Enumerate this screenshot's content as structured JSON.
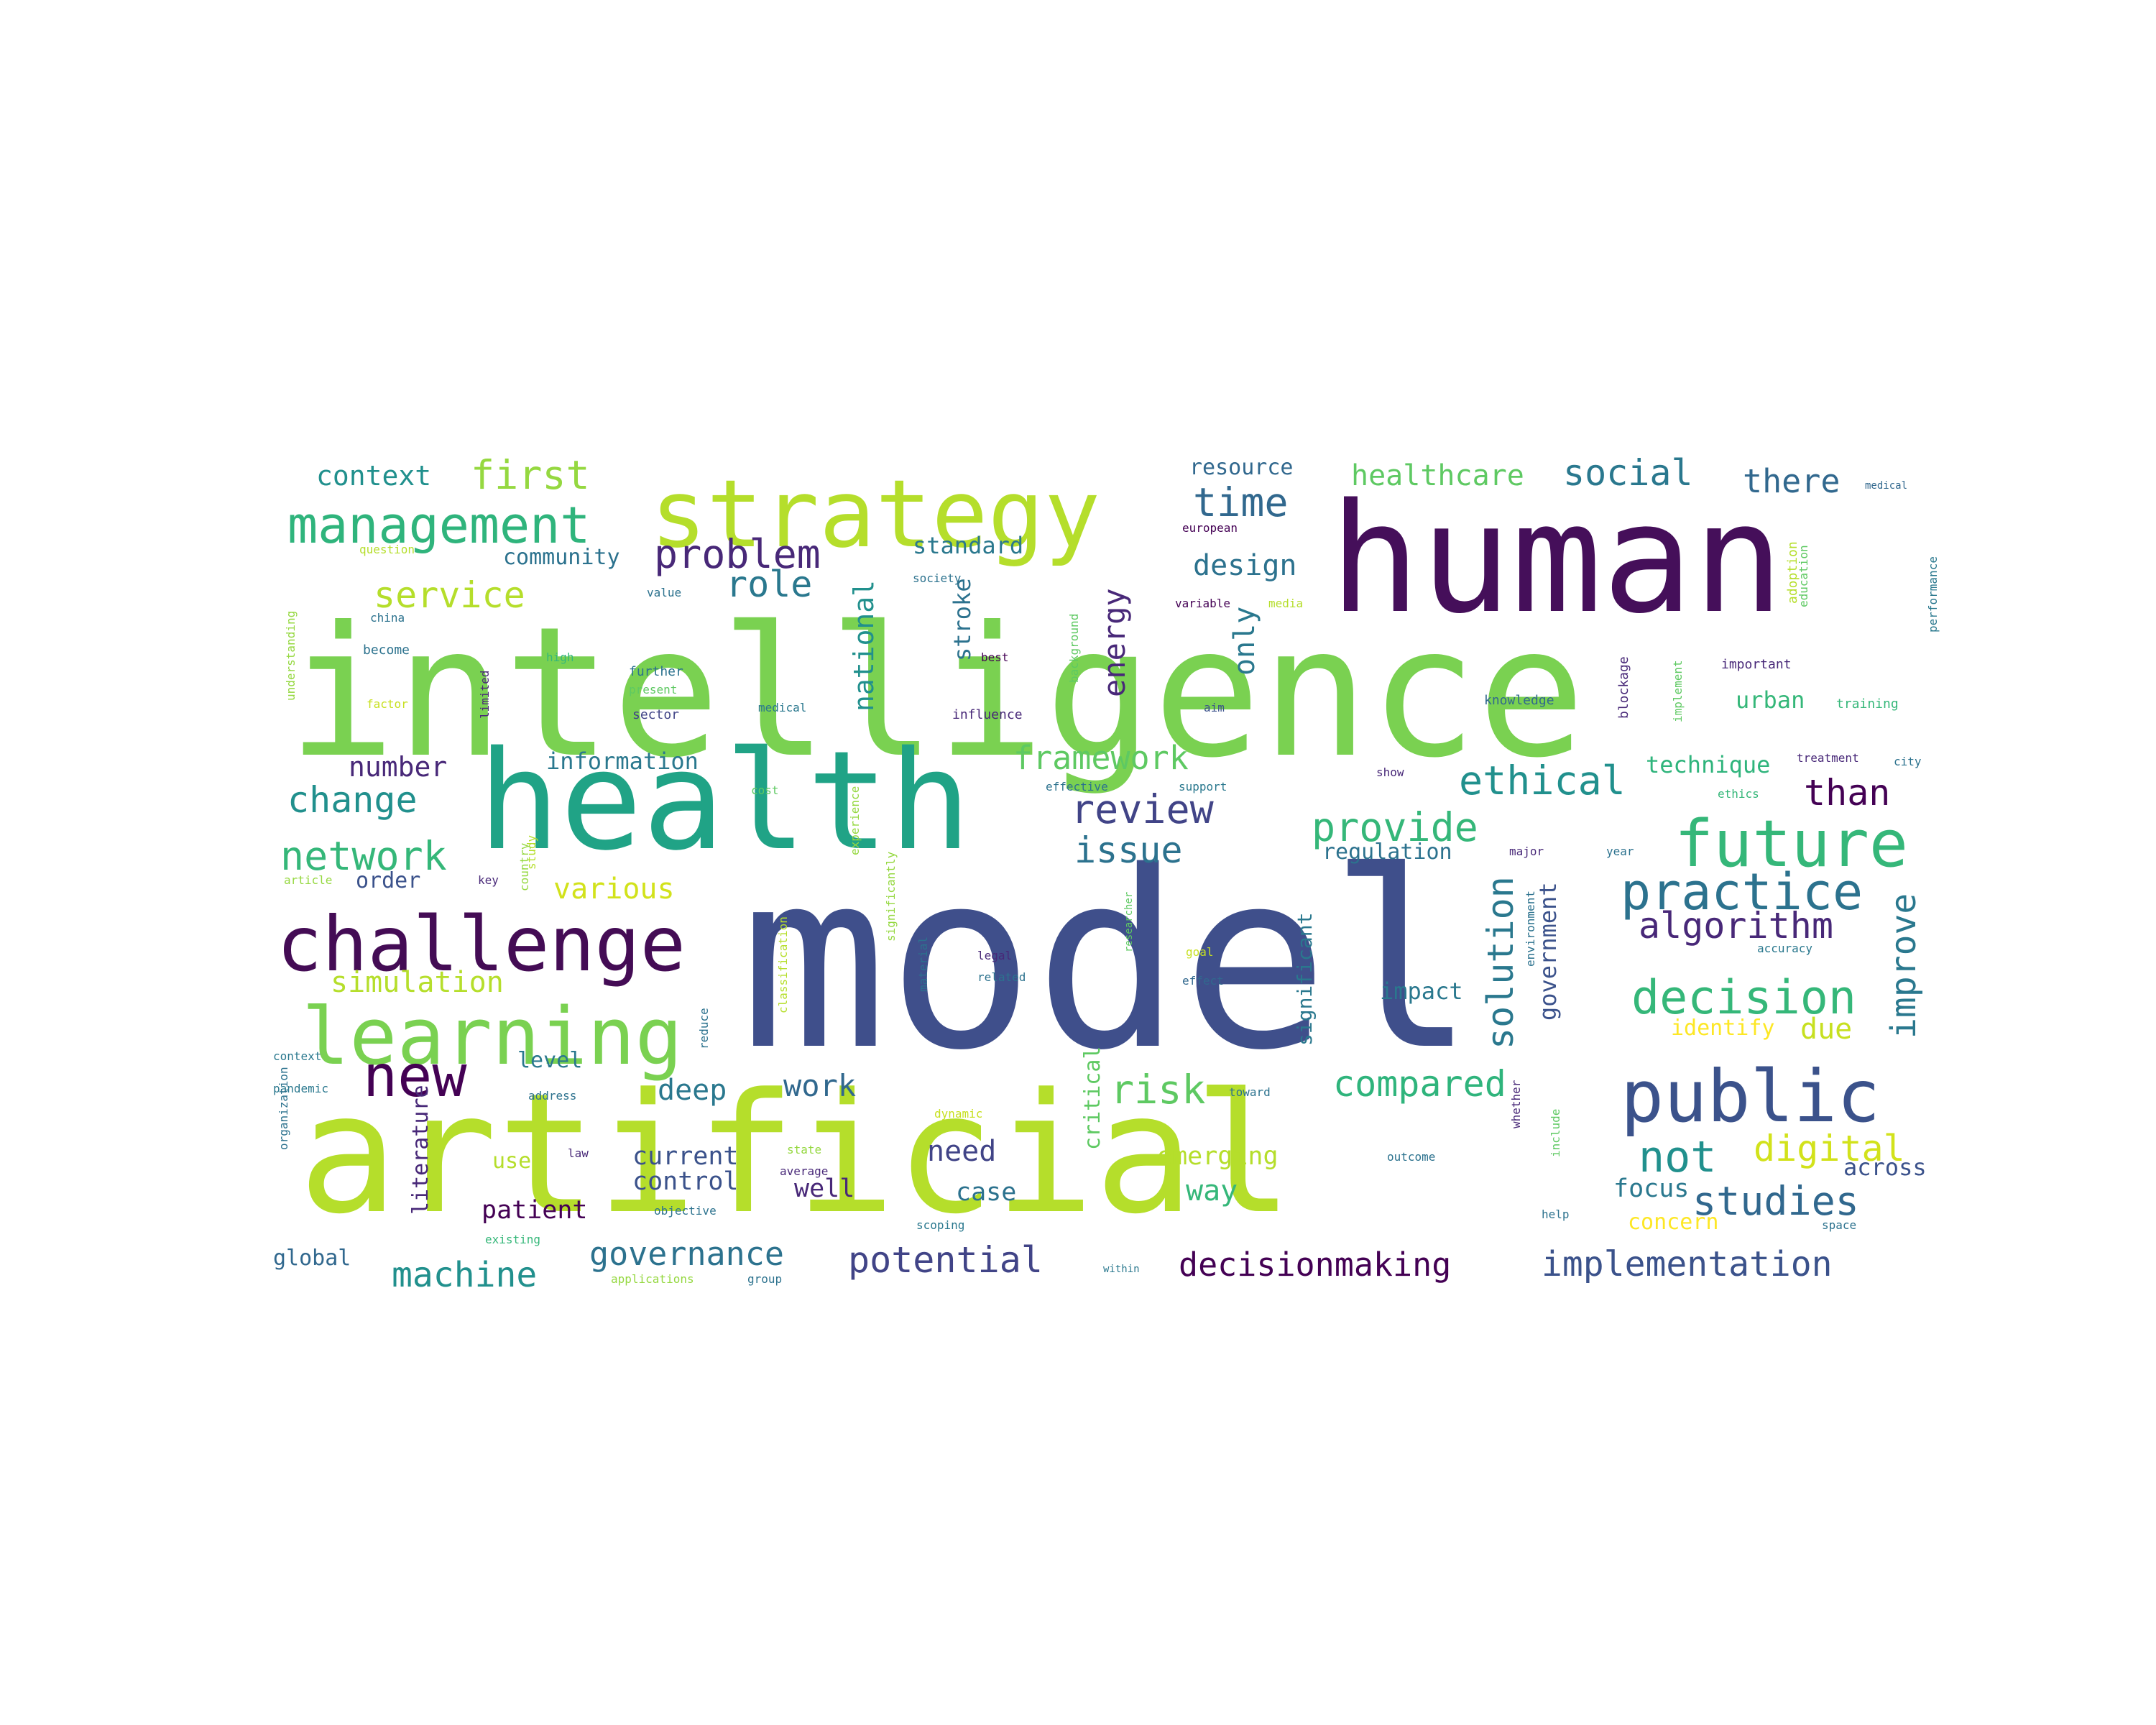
{
  "words": [
    {
      "t": "model",
      "c": "#3f4f8b"
    },
    {
      "t": "intelligence",
      "c": "#7ad151"
    },
    {
      "t": "artificial",
      "c": "#b5de2b"
    },
    {
      "t": "human",
      "c": "#450f5a"
    },
    {
      "t": "health",
      "c": "#20a386"
    },
    {
      "t": "strategy",
      "c": "#b5de2b"
    },
    {
      "t": "challenge",
      "c": "#440c55"
    },
    {
      "t": "learning",
      "c": "#7ad151"
    },
    {
      "t": "public",
      "c": "#3b528b"
    },
    {
      "t": "future",
      "c": "#35b779"
    },
    {
      "t": "management",
      "c": "#2fb47c"
    },
    {
      "t": "new",
      "c": "#440154"
    },
    {
      "t": "practice",
      "c": "#2c728e"
    },
    {
      "t": "decision",
      "c": "#35b779"
    },
    {
      "t": "network",
      "c": "#35b779"
    },
    {
      "t": "ethical",
      "c": "#21908d"
    },
    {
      "t": "change",
      "c": "#21908d"
    },
    {
      "t": "algorithm",
      "c": "#482878"
    },
    {
      "t": "first",
      "c": "#95d840"
    },
    {
      "t": "social",
      "c": "#2a788e"
    },
    {
      "t": "time",
      "c": "#31688e"
    },
    {
      "t": "problem",
      "c": "#482878"
    },
    {
      "t": "role",
      "c": "#2a788e"
    },
    {
      "t": "service",
      "c": "#b5de2b"
    },
    {
      "t": "implementation",
      "c": "#3b528b"
    },
    {
      "t": "decisionmaking",
      "c": "#440154"
    },
    {
      "t": "potential",
      "c": "#414487"
    },
    {
      "t": "governance",
      "c": "#2c728e"
    },
    {
      "t": "machine",
      "c": "#21908d"
    },
    {
      "t": "studies",
      "c": "#31688e"
    },
    {
      "t": "digital",
      "c": "#d2e21b"
    },
    {
      "t": "not",
      "c": "#21908d"
    },
    {
      "t": "compared",
      "c": "#2fb47c"
    },
    {
      "t": "risk",
      "c": "#5ec962"
    },
    {
      "t": "provide",
      "c": "#35b779"
    },
    {
      "t": "review",
      "c": "#414487"
    },
    {
      "t": "issue",
      "c": "#2c728e"
    },
    {
      "t": "framework",
      "c": "#5ec962"
    },
    {
      "t": "than",
      "c": "#440154"
    },
    {
      "t": "there",
      "c": "#31688e"
    },
    {
      "t": "healthcare",
      "c": "#5ec962"
    },
    {
      "t": "design",
      "c": "#2c728e"
    },
    {
      "t": "simulation",
      "c": "#b5de2b"
    },
    {
      "t": "various",
      "c": "#d2e21b"
    },
    {
      "t": "context",
      "c": "#21908d"
    },
    {
      "t": "number",
      "c": "#482878"
    },
    {
      "t": "information",
      "c": "#2a788e"
    },
    {
      "t": "work",
      "c": "#31688e"
    },
    {
      "t": "deep",
      "c": "#2a788e"
    },
    {
      "t": "need",
      "c": "#414487"
    },
    {
      "t": "way",
      "c": "#35b779"
    },
    {
      "t": "case",
      "c": "#2c728e"
    },
    {
      "t": "current",
      "c": "#3b528b"
    },
    {
      "t": "control",
      "c": "#3b528b"
    },
    {
      "t": "well",
      "c": "#482878"
    },
    {
      "t": "patient",
      "c": "#440154"
    },
    {
      "t": "emerging",
      "c": "#b5de2b"
    },
    {
      "t": "focus",
      "c": "#2a788e"
    },
    {
      "t": "across",
      "c": "#3b528b"
    },
    {
      "t": "concern",
      "c": "#fde725"
    },
    {
      "t": "due",
      "c": "#c7e020"
    },
    {
      "t": "identify",
      "c": "#fde725"
    },
    {
      "t": "impact",
      "c": "#2a788e"
    },
    {
      "t": "regulation",
      "c": "#2c728e"
    },
    {
      "t": "technique",
      "c": "#2fb47c"
    },
    {
      "t": "urban",
      "c": "#35b779"
    },
    {
      "t": "standard",
      "c": "#2a788e"
    },
    {
      "t": "community",
      "c": "#2c728e"
    },
    {
      "t": "resource",
      "c": "#31688e"
    },
    {
      "t": "global",
      "c": "#31688e"
    },
    {
      "t": "user",
      "c": "#b5de2b"
    },
    {
      "t": "level",
      "c": "#2a788e"
    },
    {
      "t": "order",
      "c": "#3b528b"
    },
    {
      "t": "improve",
      "c": "#2a788e"
    },
    {
      "t": "solution",
      "c": "#2a788e"
    },
    {
      "t": "energy",
      "c": "#482878"
    },
    {
      "t": "only",
      "c": "#2a788e"
    },
    {
      "t": "national",
      "c": "#21908d"
    },
    {
      "t": "stroke",
      "c": "#2c728e"
    },
    {
      "t": "government",
      "c": "#3b528b"
    },
    {
      "t": "significant",
      "c": "#2a788e"
    },
    {
      "t": "literature",
      "c": "#482878"
    },
    {
      "t": "critical",
      "c": "#5ec962"
    },
    {
      "t": "knowledge",
      "c": "#31688e"
    },
    {
      "t": "important",
      "c": "#482878"
    },
    {
      "t": "training",
      "c": "#35b779"
    },
    {
      "t": "blockage",
      "c": "#482878"
    },
    {
      "t": "implement",
      "c": "#5ec962"
    },
    {
      "t": "education",
      "c": "#5ec962"
    },
    {
      "t": "adoption",
      "c": "#b5de2b"
    },
    {
      "t": "performance",
      "c": "#2a788e"
    },
    {
      "t": "medical",
      "c": "#31688e"
    },
    {
      "t": "european",
      "c": "#440154"
    },
    {
      "t": "society",
      "c": "#2c728e"
    },
    {
      "t": "variable",
      "c": "#440154"
    },
    {
      "t": "media",
      "c": "#b5de2b"
    },
    {
      "t": "background",
      "c": "#5ec962"
    },
    {
      "t": "best",
      "c": "#440154"
    },
    {
      "t": "aim",
      "c": "#3b528b"
    },
    {
      "t": "influence",
      "c": "#482878"
    },
    {
      "t": "medical",
      "c": "#2a788e"
    },
    {
      "t": "sector",
      "c": "#414487"
    },
    {
      "t": "further",
      "c": "#2c728e"
    },
    {
      "t": "present",
      "c": "#5ec962"
    },
    {
      "t": "limited",
      "c": "#482878"
    },
    {
      "t": "high",
      "c": "#35b779"
    },
    {
      "t": "become",
      "c": "#2c728e"
    },
    {
      "t": "china",
      "c": "#2c728e"
    },
    {
      "t": "factor",
      "c": "#c7e020"
    },
    {
      "t": "understanding",
      "c": "#95d840"
    },
    {
      "t": "question",
      "c": "#b5de2b"
    },
    {
      "t": "value",
      "c": "#2c728e"
    },
    {
      "t": "city",
      "c": "#2c728e"
    },
    {
      "t": "ethics",
      "c": "#35b779"
    },
    {
      "t": "treatment",
      "c": "#482878"
    },
    {
      "t": "show",
      "c": "#482878"
    },
    {
      "t": "effective",
      "c": "#2c728e"
    },
    {
      "t": "support",
      "c": "#2a788e"
    },
    {
      "t": "cost",
      "c": "#5ec962"
    },
    {
      "t": "experience",
      "c": "#95d840"
    },
    {
      "t": "study",
      "c": "#b5de2b"
    },
    {
      "t": "key",
      "c": "#482878"
    },
    {
      "t": "article",
      "c": "#95d840"
    },
    {
      "t": "major",
      "c": "#482878"
    },
    {
      "t": "year",
      "c": "#2c728e"
    },
    {
      "t": "accuracy",
      "c": "#2a788e"
    },
    {
      "t": "legal",
      "c": "#482878"
    },
    {
      "t": "related",
      "c": "#2c728e"
    },
    {
      "t": "goal",
      "c": "#c7e020"
    },
    {
      "t": "effect",
      "c": "#31688e"
    },
    {
      "t": "environment",
      "c": "#2c728e"
    },
    {
      "t": "researcher",
      "c": "#5ec962"
    },
    {
      "t": "material",
      "c": "#2c728e"
    },
    {
      "t": "significantly",
      "c": "#95d840"
    },
    {
      "t": "classification",
      "c": "#b5de2b"
    },
    {
      "t": "reduce",
      "c": "#2c728e"
    },
    {
      "t": "context",
      "c": "#2a788e"
    },
    {
      "t": "pandemic",
      "c": "#2a788e"
    },
    {
      "t": "address",
      "c": "#2c728e"
    },
    {
      "t": "dynamic",
      "c": "#c7e020"
    },
    {
      "t": "toward",
      "c": "#2c728e"
    },
    {
      "t": "whether",
      "c": "#482878"
    },
    {
      "t": "include",
      "c": "#5ec962"
    },
    {
      "t": "outcome",
      "c": "#2c728e"
    },
    {
      "t": "state",
      "c": "#95d840"
    },
    {
      "t": "average",
      "c": "#482878"
    },
    {
      "t": "objective",
      "c": "#2c728e"
    },
    {
      "t": "scoping",
      "c": "#2a788e"
    },
    {
      "t": "law",
      "c": "#482878"
    },
    {
      "t": "help",
      "c": "#2c728e"
    },
    {
      "t": "space",
      "c": "#2c728e"
    },
    {
      "t": "within",
      "c": "#2a788e"
    },
    {
      "t": "organization",
      "c": "#2c728e"
    },
    {
      "t": "existing",
      "c": "#35b779"
    },
    {
      "t": "applications",
      "c": "#95d840"
    },
    {
      "t": "group",
      "c": "#2c728e"
    },
    {
      "t": "country",
      "c": "#95d840"
    }
  ]
}
